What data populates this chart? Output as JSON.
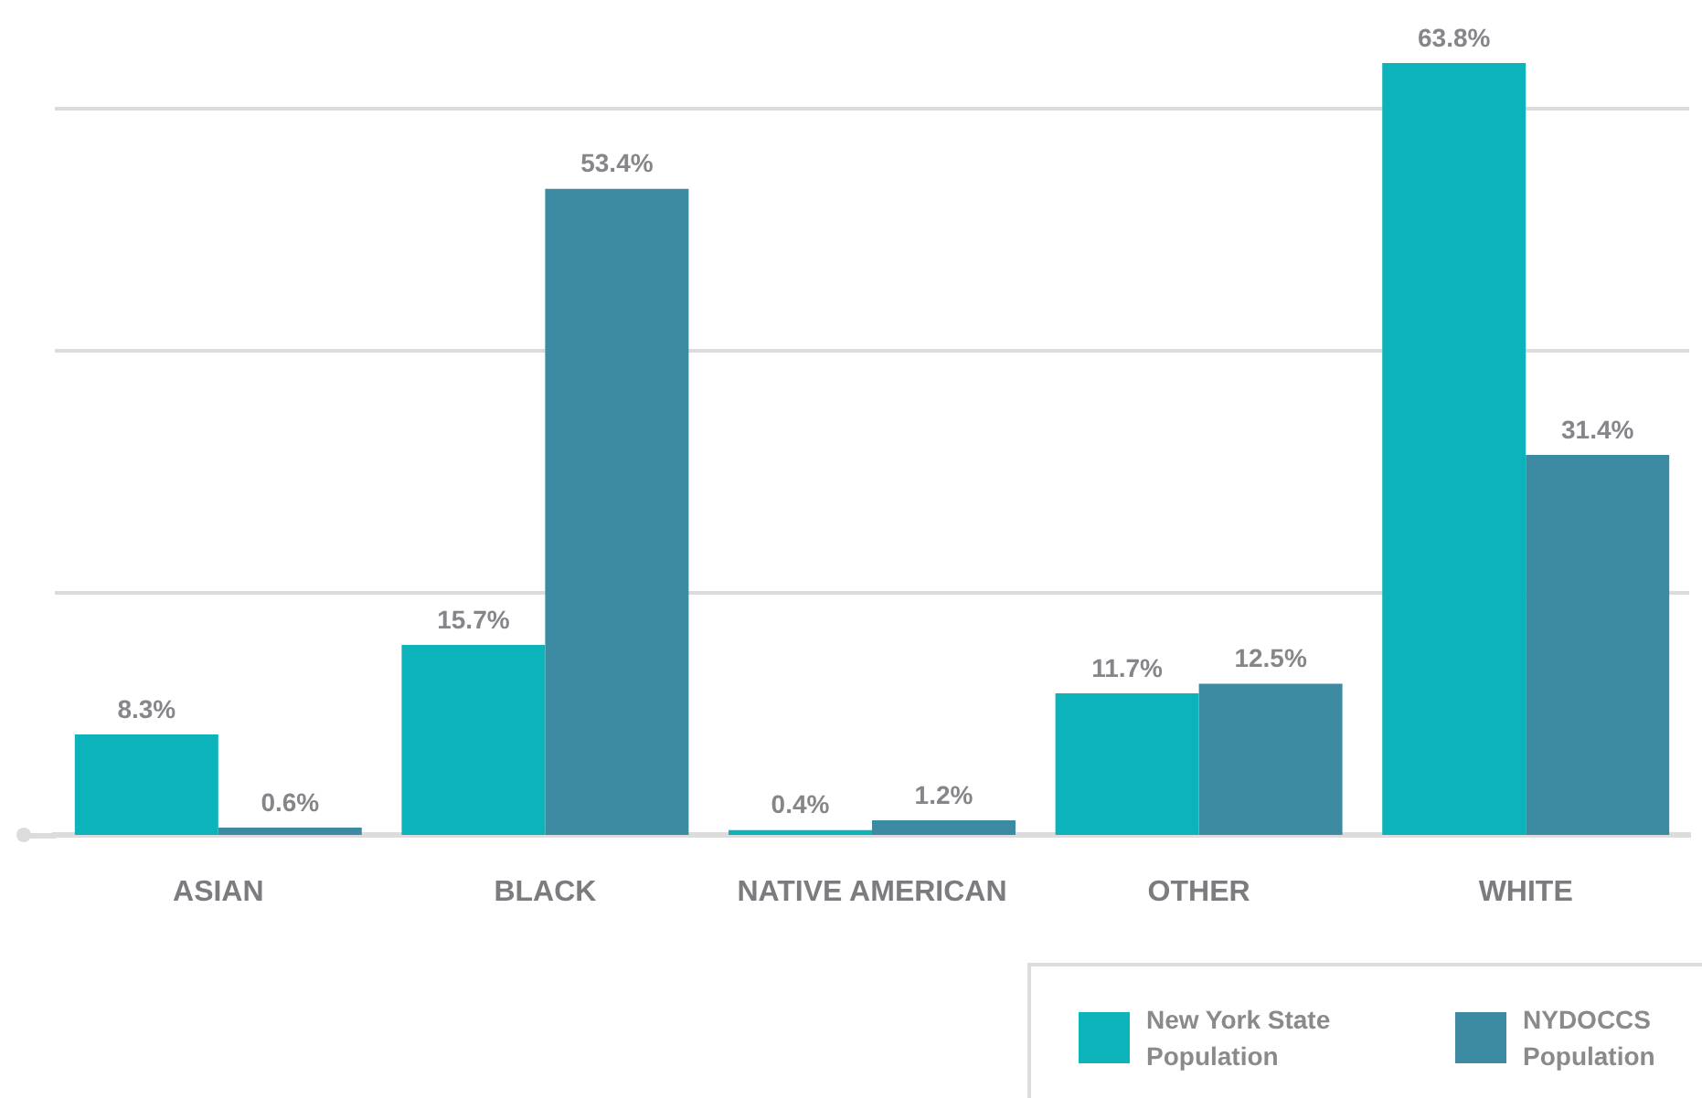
{
  "chart_data": {
    "type": "bar",
    "categories": [
      "ASIAN",
      "BLACK",
      "NATIVE AMERICAN",
      "OTHER",
      "WHITE"
    ],
    "series": [
      {
        "name": "New York State Population",
        "color": "#0db3bb",
        "values": [
          8.3,
          15.7,
          0.4,
          11.7,
          63.8
        ],
        "value_labels": [
          "8.3%",
          "15.7%",
          "0.4%",
          "11.7%",
          "63.8%"
        ]
      },
      {
        "name": "NYDOCCS Population",
        "color": "#3c8ba2",
        "values": [
          0.6,
          53.4,
          1.2,
          12.5,
          31.4
        ],
        "value_labels": [
          "0.6%",
          "53.4%",
          "1.2%",
          "12.5%",
          "31.4%"
        ]
      }
    ],
    "ylim": [
      0,
      69
    ],
    "yticks": [
      {
        "value": 20,
        "label": null
      },
      {
        "value": 40,
        "label": null
      },
      {
        "value": 60,
        "label": null
      }
    ],
    "grid": "y",
    "tick_labels": "x",
    "legend": "bottom right"
  }
}
